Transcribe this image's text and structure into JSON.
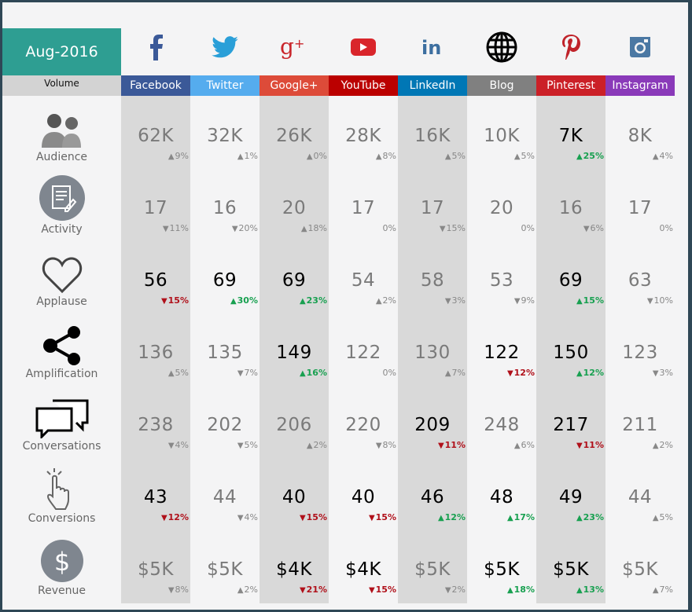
{
  "period": "Aug-2016",
  "volume_label": "Volume",
  "colors": {
    "teal": "#2e9e92",
    "positive": "#18a050",
    "negative": "#b0101a",
    "neutral": "#888888"
  },
  "networks": [
    {
      "name": "Facebook",
      "icon": "facebook-icon",
      "color": "#3b5998"
    },
    {
      "name": "Twitter",
      "icon": "twitter-icon",
      "color": "#55acee"
    },
    {
      "name": "Google+",
      "icon": "google-plus-icon",
      "color": "#dd4b39"
    },
    {
      "name": "YouTube",
      "icon": "youtube-icon",
      "color": "#bb0000"
    },
    {
      "name": "LinkedIn",
      "icon": "linkedin-icon",
      "color": "#0077b5"
    },
    {
      "name": "Blog",
      "icon": "globe-icon",
      "color": "#808080"
    },
    {
      "name": "Pinterest",
      "icon": "pinterest-icon",
      "color": "#cb2027"
    },
    {
      "name": "Instagram",
      "icon": "instagram-icon",
      "color": "#8a3ab9"
    }
  ],
  "metrics": [
    {
      "label": "Audience",
      "icon": "people-icon",
      "cells": [
        {
          "v": "62K",
          "c": "9%",
          "dir": "up",
          "tone": "neutral"
        },
        {
          "v": "32K",
          "c": "1%",
          "dir": "up",
          "tone": "neutral"
        },
        {
          "v": "26K",
          "c": "0%",
          "dir": "up",
          "tone": "neutral"
        },
        {
          "v": "28K",
          "c": "8%",
          "dir": "up",
          "tone": "neutral"
        },
        {
          "v": "16K",
          "c": "5%",
          "dir": "up",
          "tone": "neutral"
        },
        {
          "v": "10K",
          "c": "5%",
          "dir": "up",
          "tone": "neutral"
        },
        {
          "v": "7K",
          "c": "25%",
          "dir": "up",
          "tone": "pos"
        },
        {
          "v": "8K",
          "c": "4%",
          "dir": "up",
          "tone": "neutral"
        }
      ]
    },
    {
      "label": "Activity",
      "icon": "document-edit-icon",
      "cells": [
        {
          "v": "17",
          "c": "11%",
          "dir": "down",
          "tone": "neutral"
        },
        {
          "v": "16",
          "c": "20%",
          "dir": "down",
          "tone": "neutral"
        },
        {
          "v": "20",
          "c": "18%",
          "dir": "up",
          "tone": "neutral"
        },
        {
          "v": "17",
          "c": "0%",
          "dir": "none",
          "tone": "neutral"
        },
        {
          "v": "17",
          "c": "15%",
          "dir": "down",
          "tone": "neutral"
        },
        {
          "v": "20",
          "c": "0%",
          "dir": "none",
          "tone": "neutral"
        },
        {
          "v": "16",
          "c": "6%",
          "dir": "down",
          "tone": "neutral"
        },
        {
          "v": "17",
          "c": "0%",
          "dir": "none",
          "tone": "neutral"
        }
      ]
    },
    {
      "label": "Applause",
      "icon": "heart-icon",
      "cells": [
        {
          "v": "56",
          "c": "15%",
          "dir": "down",
          "tone": "neg"
        },
        {
          "v": "69",
          "c": "30%",
          "dir": "up",
          "tone": "pos"
        },
        {
          "v": "69",
          "c": "23%",
          "dir": "up",
          "tone": "pos"
        },
        {
          "v": "54",
          "c": "2%",
          "dir": "up",
          "tone": "neutral"
        },
        {
          "v": "58",
          "c": "3%",
          "dir": "down",
          "tone": "neutral"
        },
        {
          "v": "53",
          "c": "9%",
          "dir": "down",
          "tone": "neutral"
        },
        {
          "v": "69",
          "c": "15%",
          "dir": "up",
          "tone": "pos"
        },
        {
          "v": "63",
          "c": "10%",
          "dir": "down",
          "tone": "neutral"
        }
      ]
    },
    {
      "label": "Amplification",
      "icon": "share-icon",
      "cells": [
        {
          "v": "136",
          "c": "5%",
          "dir": "up",
          "tone": "neutral"
        },
        {
          "v": "135",
          "c": "7%",
          "dir": "down",
          "tone": "neutral"
        },
        {
          "v": "149",
          "c": "16%",
          "dir": "up",
          "tone": "pos"
        },
        {
          "v": "122",
          "c": "0%",
          "dir": "none",
          "tone": "neutral"
        },
        {
          "v": "130",
          "c": "7%",
          "dir": "up",
          "tone": "neutral"
        },
        {
          "v": "122",
          "c": "12%",
          "dir": "down",
          "tone": "neg"
        },
        {
          "v": "150",
          "c": "12%",
          "dir": "up",
          "tone": "pos"
        },
        {
          "v": "123",
          "c": "3%",
          "dir": "down",
          "tone": "neutral"
        }
      ]
    },
    {
      "label": "Conversations",
      "icon": "chat-bubbles-icon",
      "cells": [
        {
          "v": "238",
          "c": "4%",
          "dir": "down",
          "tone": "neutral"
        },
        {
          "v": "202",
          "c": "5%",
          "dir": "down",
          "tone": "neutral"
        },
        {
          "v": "206",
          "c": "2%",
          "dir": "up",
          "tone": "neutral"
        },
        {
          "v": "220",
          "c": "8%",
          "dir": "down",
          "tone": "neutral"
        },
        {
          "v": "209",
          "c": "11%",
          "dir": "down",
          "tone": "neg"
        },
        {
          "v": "248",
          "c": "6%",
          "dir": "up",
          "tone": "neutral"
        },
        {
          "v": "217",
          "c": "11%",
          "dir": "down",
          "tone": "neg"
        },
        {
          "v": "211",
          "c": "2%",
          "dir": "up",
          "tone": "neutral"
        }
      ]
    },
    {
      "label": "Conversions",
      "icon": "tap-hand-icon",
      "cells": [
        {
          "v": "43",
          "c": "12%",
          "dir": "down",
          "tone": "neg"
        },
        {
          "v": "44",
          "c": "4%",
          "dir": "down",
          "tone": "neutral"
        },
        {
          "v": "40",
          "c": "15%",
          "dir": "down",
          "tone": "neg"
        },
        {
          "v": "40",
          "c": "15%",
          "dir": "down",
          "tone": "neg"
        },
        {
          "v": "46",
          "c": "12%",
          "dir": "up",
          "tone": "pos"
        },
        {
          "v": "48",
          "c": "17%",
          "dir": "up",
          "tone": "pos"
        },
        {
          "v": "49",
          "c": "23%",
          "dir": "up",
          "tone": "pos"
        },
        {
          "v": "44",
          "c": "5%",
          "dir": "up",
          "tone": "neutral"
        }
      ]
    },
    {
      "label": "Revenue",
      "icon": "dollar-icon",
      "cells": [
        {
          "v": "$5K",
          "c": "8%",
          "dir": "down",
          "tone": "neutral"
        },
        {
          "v": "$5K",
          "c": "2%",
          "dir": "up",
          "tone": "neutral"
        },
        {
          "v": "$4K",
          "c": "21%",
          "dir": "down",
          "tone": "neg"
        },
        {
          "v": "$4K",
          "c": "15%",
          "dir": "down",
          "tone": "neg"
        },
        {
          "v": "$5K",
          "c": "2%",
          "dir": "down",
          "tone": "neutral"
        },
        {
          "v": "$5K",
          "c": "18%",
          "dir": "up",
          "tone": "pos"
        },
        {
          "v": "$5K",
          "c": "13%",
          "dir": "up",
          "tone": "pos"
        },
        {
          "v": "$5K",
          "c": "7%",
          "dir": "up",
          "tone": "neutral"
        }
      ]
    }
  ]
}
